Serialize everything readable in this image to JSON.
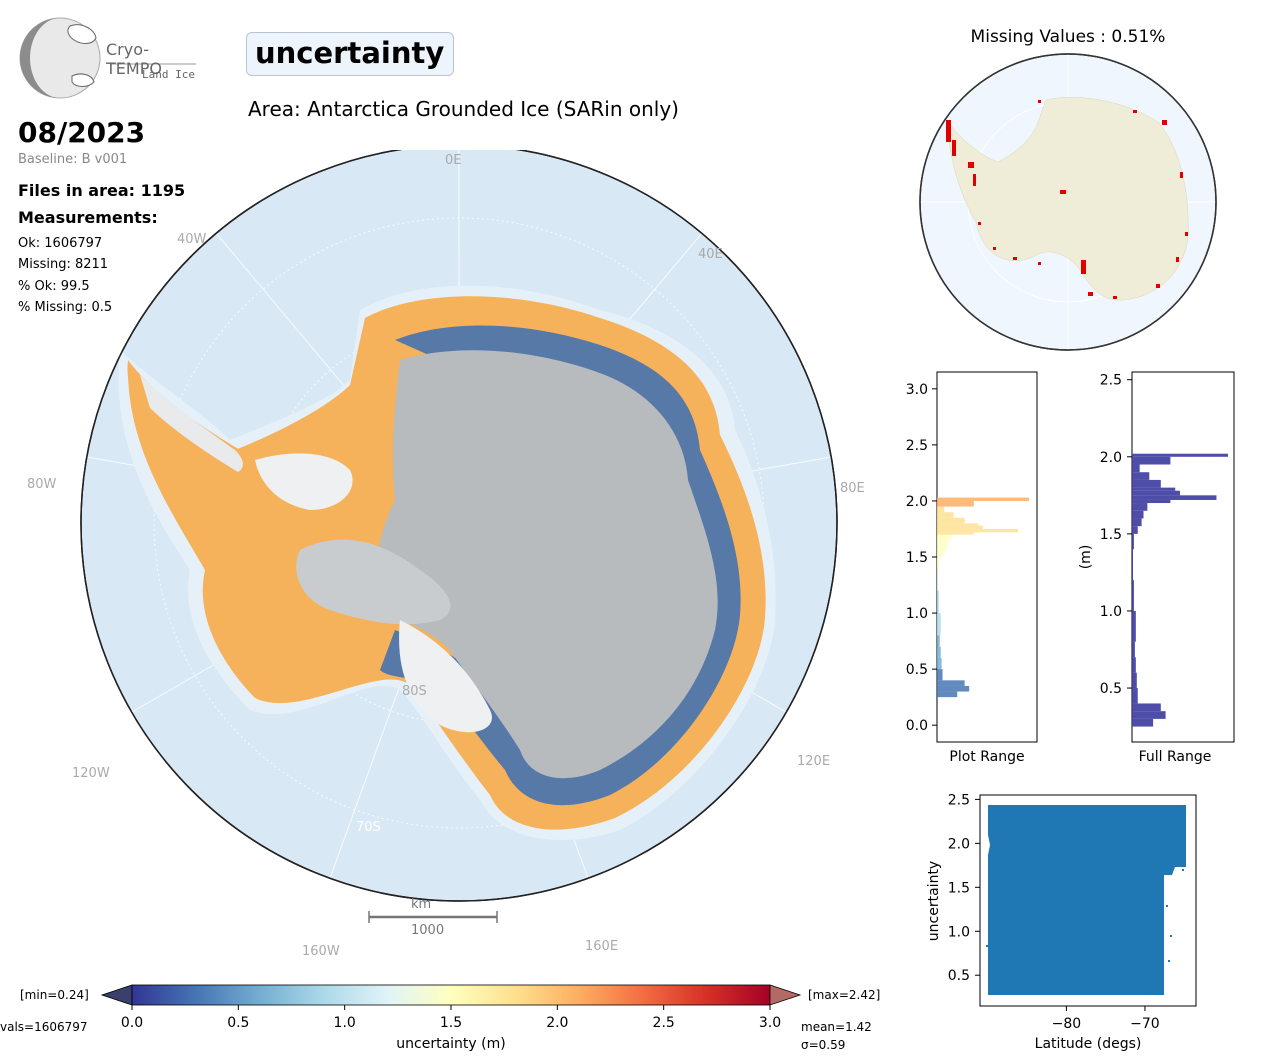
{
  "logo": {
    "name": "Cryo-TEMPO",
    "sub": "Land Ice"
  },
  "header": {
    "title": "uncertainty",
    "area": "Area: Antarctica Grounded Ice (SARin only)",
    "date": "08/2023",
    "baseline": "Baseline: B v001"
  },
  "stats": {
    "files": "Files in area: 1195",
    "measurements_title": "Measurements:",
    "ok": "Ok: 1606797",
    "missing": "Missing: 8211",
    "pct_ok": "% Ok: 99.5",
    "pct_missing": "% Missing: 0.5"
  },
  "map": {
    "lon_labels": [
      "0E",
      "40E",
      "80E",
      "120E",
      "160E",
      "160W",
      "120W",
      "80W",
      "40W"
    ],
    "lat_labels": [
      "80S",
      "70S"
    ],
    "scalebar_unit": "km",
    "scalebar_value": "1000",
    "colors": {
      "ocean": "#d9e8f5",
      "ice_interior": "#b7bbbe",
      "ice_shelf": "#eef0f2",
      "high": "#f6b25a",
      "low": "#3b6fb6"
    }
  },
  "colorbar": {
    "ticks": [
      "0.0",
      "0.5",
      "1.0",
      "1.5",
      "2.0",
      "2.5",
      "3.0"
    ],
    "label": "uncertainty (m)",
    "min_label": "[min=0.24]",
    "max_label": "[max=2.42]",
    "nvals": "vals=1606797",
    "mean": "mean=1.42",
    "sigma": "σ=0.59"
  },
  "missing_map": {
    "title": "Missing Values : 0.51%"
  },
  "hist_plot_range": {
    "xlabel": "Plot Range",
    "yticks": [
      "0.0",
      "0.5",
      "1.0",
      "1.5",
      "2.0",
      "2.5",
      "3.0"
    ]
  },
  "hist_full_range": {
    "xlabel": "Full Range",
    "ylabel": "(m)",
    "yticks": [
      "0.5",
      "1.0",
      "1.5",
      "2.0",
      "2.5"
    ]
  },
  "scatter": {
    "xlabel": "Latitude (degs)",
    "ylabel": "uncertainty",
    "xticks": [
      "−80",
      "−70"
    ],
    "yticks": [
      "0.5",
      "1.0",
      "1.5",
      "2.0",
      "2.5"
    ],
    "color": "#1f77b4"
  },
  "chart_data": {
    "type": "bar",
    "orientation": "horizontal",
    "title": "",
    "ylabel": "(m)",
    "ylim": [
      0.15,
      2.55
    ],
    "bins": [
      0.25,
      0.3,
      0.35,
      0.4,
      0.5,
      0.6,
      0.7,
      0.8,
      1.0,
      1.2,
      1.4,
      1.5,
      1.55,
      1.6,
      1.65,
      1.7,
      1.72,
      1.75,
      1.78,
      1.8,
      1.85,
      1.9,
      1.95,
      2.0
    ],
    "relative_counts": [
      0.22,
      0.35,
      0.3,
      0.06,
      0.05,
      0.04,
      0.03,
      0.04,
      0.02,
      0.01,
      0.02,
      0.06,
      0.1,
      0.12,
      0.16,
      0.4,
      0.88,
      0.5,
      0.45,
      0.3,
      0.18,
      0.08,
      0.4,
      1.0
    ]
  }
}
